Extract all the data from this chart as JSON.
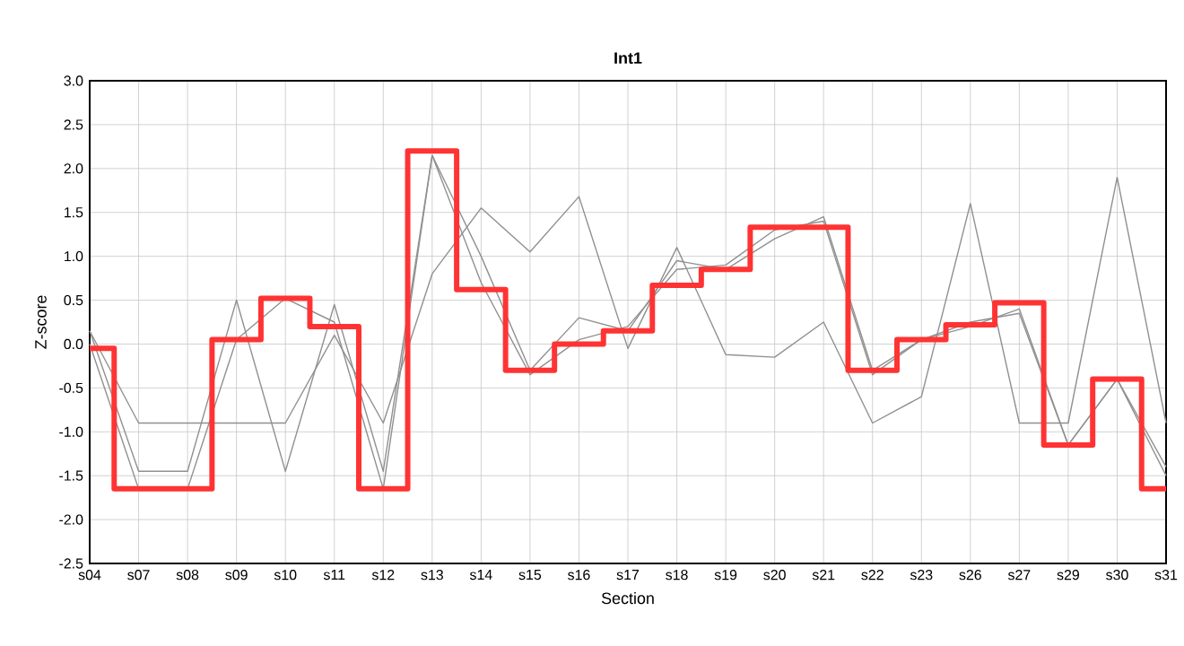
{
  "chart_data": {
    "type": "line",
    "title": "Int1",
    "xlabel": "Section",
    "ylabel": "Z-score",
    "categories": [
      "s04",
      "s07",
      "s08",
      "s09",
      "s10",
      "s11",
      "s12",
      "s13",
      "s14",
      "s15",
      "s16",
      "s17",
      "s18",
      "s19",
      "s20",
      "s21",
      "s22",
      "s23",
      "s26",
      "s27",
      "s29",
      "s30",
      "s31"
    ],
    "ylim": [
      -2.5,
      3.0
    ],
    "yticks": [
      {
        "value": -2.5,
        "label": "-2.5"
      },
      {
        "value": -2,
        "label": "-2.0"
      },
      {
        "value": -1.5,
        "label": "-1.5"
      },
      {
        "value": -1,
        "label": "-1.0"
      },
      {
        "value": -0.5,
        "label": "-0.5"
      },
      {
        "value": 0,
        "label": "0.0"
      },
      {
        "value": 0.5,
        "label": "0.5"
      },
      {
        "value": 1,
        "label": "1.0"
      },
      {
        "value": 1.5,
        "label": "1.5"
      },
      {
        "value": 2,
        "label": "2.0"
      },
      {
        "value": 2.5,
        "label": "2.5"
      },
      {
        "value": 3,
        "label": "3.0"
      }
    ],
    "grid": true,
    "marker": "none",
    "series": [
      {
        "color": "#909090",
        "values": [
          0.15,
          -0.9,
          -0.9,
          -0.9,
          -0.9,
          0.1,
          -0.9,
          0.8,
          1.55,
          1.05,
          1.68,
          -0.05,
          1.1,
          -0.12,
          -0.15,
          0.25,
          -0.9,
          -0.6,
          1.6,
          -0.9,
          -0.9,
          1.9,
          -0.9
        ]
      },
      {
        "color": "#909090",
        "values": [
          0.15,
          -1.45,
          -1.45,
          0.5,
          -1.45,
          0.45,
          -1.45,
          2.15,
          1.0,
          -0.3,
          0.3,
          0.15,
          0.95,
          0.85,
          1.2,
          1.45,
          -0.3,
          0.05,
          0.2,
          0.4,
          -1.15,
          -0.4,
          -1.5
        ]
      },
      {
        "color": "#909090",
        "values": [
          0.0,
          -1.65,
          -1.65,
          0.05,
          0.52,
          0.25,
          -1.65,
          2.15,
          0.7,
          -0.35,
          0.05,
          0.2,
          0.85,
          0.9,
          1.3,
          1.4,
          -0.35,
          0.05,
          0.25,
          0.35,
          -1.15,
          -0.4,
          -1.4
        ]
      },
      {
        "type": "step",
        "color": "#ff3333",
        "values": [
          -0.05,
          -1.65,
          -1.65,
          0.05,
          0.52,
          0.2,
          -1.65,
          2.2,
          0.62,
          -0.3,
          0.0,
          0.15,
          0.67,
          0.85,
          1.33,
          1.33,
          -0.3,
          0.05,
          0.22,
          0.47,
          -1.15,
          -0.4,
          -1.65
        ]
      }
    ]
  }
}
